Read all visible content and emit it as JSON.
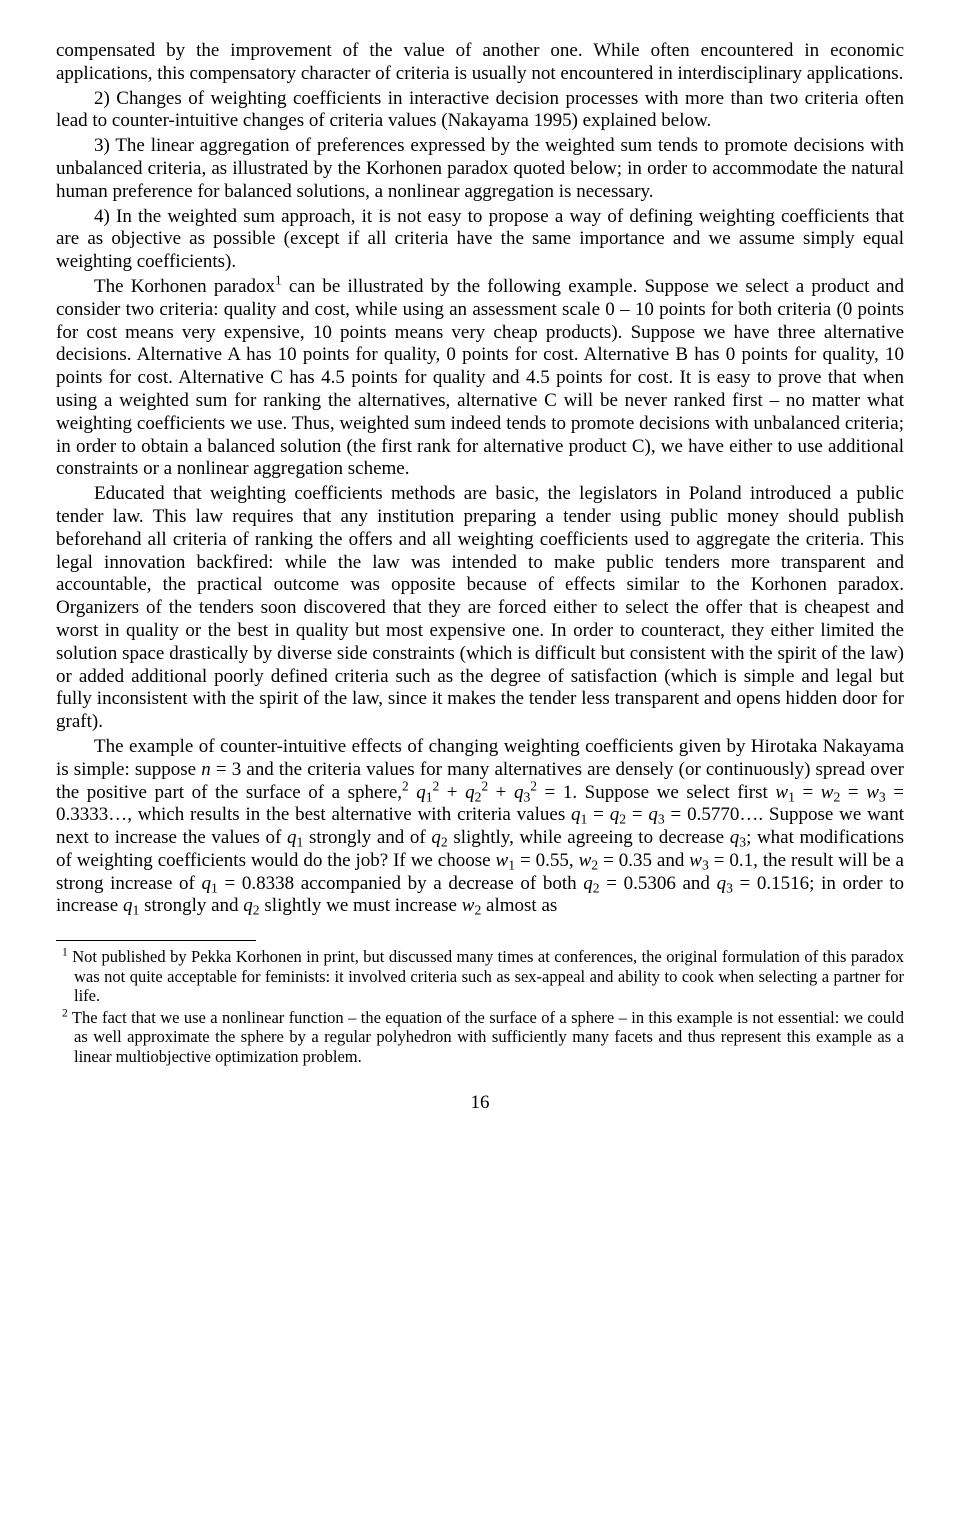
{
  "paragraphs": {
    "p1": "compensated by the improvement of the value of another one. While often encountered in economic applications, this compensatory character of criteria is usually not encountered in interdisciplinary applications.",
    "p2": "2)   Changes of weighting coefficients in interactive decision processes with more than two criteria often lead to counter-intuitive changes of criteria values (Nakayama 1995) explained below.",
    "p3": "3)   The linear aggregation of preferences expressed by the weighted sum tends to promote decisions with unbalanced criteria, as illustrated by the Korhonen paradox quoted below; in order to accommodate the natural human preference for balanced solutions, a nonlinear aggregation is necessary.",
    "p4": "4)   In the weighted sum approach, it is not easy to propose a way of defining weighting coefficients that are as objective as possible (except if all criteria have the same importance and we assume simply equal weighting coefficients).",
    "p5a": "The Korhonen paradox",
    "p5b": " can be illustrated by the following example. Suppose we select a product and consider two criteria: quality and cost, while using an assessment scale 0 – 10 points for both criteria (0 points for cost means very expensive, 10 points means very cheap products). Suppose we have three alternative decisions. Alternative A has 10 points for quality, 0 points for cost. Alternative B has 0 points for quality, 10 points for cost. Alternative C has 4.5 points for quality and 4.5 points for cost. It is easy to prove that when using a weighted sum for ranking the alternatives, alternative C will be never ranked first – no matter what weighting coefficients we use. Thus, weighted sum indeed tends to promote decisions with unbalanced criteria; in order to obtain a balanced solution (the first rank for alternative product C), we have either to use additional constraints or a nonlinear aggregation scheme.",
    "p6": "Educated that weighting coefficients methods are basic, the legislators in Poland introduced a public tender law. This law requires that any institution preparing a tender using public money should publish beforehand all criteria of ranking the offers and all weighting coefficients used to aggregate the criteria. This legal innovation backfired: while the law was intended to make public tenders more transparent and accountable, the practical outcome was opposite because of effects similar to the Korhonen paradox. Organizers of the tenders soon discovered that they are forced either to select the offer that is cheapest and worst in quality or the best in quality but most expensive one. In order to counteract, they either limited the solution space drastically by diverse side constraints (which is difficult but consistent with the spirit of the law) or added additional poorly defined criteria such as the degree of satisfaction (which is simple and legal but fully inconsistent with the spirit of the law, since it makes the tender less transparent and opens hidden door for graft).",
    "p7a": "The example of counter-intuitive effects of changing weighting coefficients given by Hirotaka Nakayama is simple: suppose ",
    "p7b": " = 3 and the criteria values for many alternatives are densely (or continuously) spread over the positive part of the surface of a sphere,",
    "p7c": " = 1. Suppose we select first ",
    "p7d": " = 0.3333…, which results in the best alternative with criteria values ",
    "p7e": " = 0.5770…. Suppose we want next to increase the values of ",
    "p7f": " strongly and of ",
    "p7g": " slightly, while agreeing to decrease ",
    "p7h": "; what modifications of weighting coefficients would do the job? If we choose ",
    "p7i": " = 0.55, ",
    "p7j": " = 0.35 and ",
    "p7k": " = 0.1, the result will be a strong increase of ",
    "p7l": " = 0.8338 accompanied by a decrease of both ",
    "p7m": " = 0.5306 and ",
    "p7n": " = 0.1516; in order to increase ",
    "p7o": " strongly and ",
    "p7p": " slightly we must increase ",
    "p7q": " almost as"
  },
  "math": {
    "n": "n",
    "q1": "q",
    "q2": "q",
    "q3": "q",
    "w1": "w",
    "w2": "w",
    "w3": "w"
  },
  "footnotes": {
    "f1": "Not published by Pekka Korhonen in print, but discussed many times at conferences, the original formulation of this paradox was not quite acceptable for feminists: it involved criteria such as sex-appeal and ability to cook when selecting a partner for life.",
    "f2": "The fact that we use a nonlinear function – the equation of the surface of a sphere – in this example is not essential: we could as well approximate the sphere by a regular polyhedron with sufficiently many facets and thus represent this example as a linear multiobjective optimization problem."
  },
  "pagenum": "16"
}
